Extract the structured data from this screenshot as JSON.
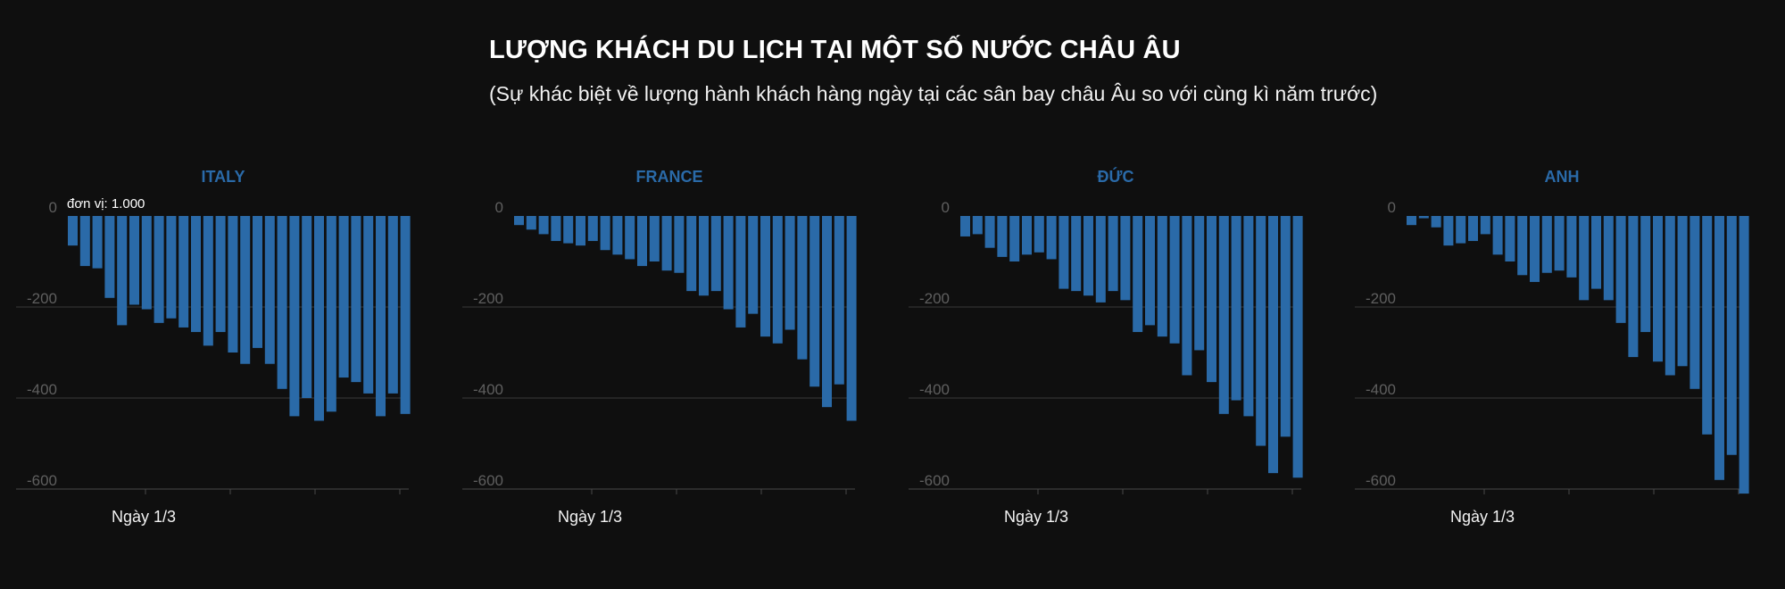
{
  "header": {
    "title": "LƯỢNG KHÁCH DU LỊCH TẠI MỘT SỐ NƯỚC CHÂU ÂU",
    "subtitle": "(Sự khác biệt về lượng hành khách hàng ngày tại các sân bay châu Âu so với cùng kì năm trước)"
  },
  "colors": {
    "background": "#0f0f0f",
    "bar": "#2a6aa8",
    "panel_title": "#2a6aa8",
    "grid": "#3a3a3a",
    "tick_label": "#5f5f5f"
  },
  "chart_data": [
    {
      "type": "bar",
      "title": "ITALY",
      "unit_note": "đơn vị: 1.000",
      "x_tick_label": "Ngày 1/3",
      "ylim": [
        -600,
        0
      ],
      "yticks": [
        0,
        -200,
        -400,
        -600
      ],
      "grid": true,
      "values": [
        -65,
        -110,
        -115,
        -180,
        -240,
        -195,
        -205,
        -235,
        -225,
        -245,
        -255,
        -285,
        -255,
        -300,
        -325,
        -290,
        -325,
        -380,
        -440,
        -400,
        -450,
        -430,
        -355,
        -365,
        -390,
        -440,
        -390,
        -435
      ]
    },
    {
      "type": "bar",
      "title": "FRANCE",
      "x_tick_label": "Ngày 1/3",
      "ylim": [
        -600,
        0
      ],
      "yticks": [
        0,
        -200,
        -400,
        -600
      ],
      "grid": true,
      "values": [
        -20,
        -30,
        -40,
        -55,
        -60,
        -65,
        -55,
        -75,
        -85,
        -95,
        -110,
        -100,
        -120,
        -125,
        -165,
        -175,
        -165,
        -205,
        -245,
        -215,
        -265,
        -280,
        -250,
        -315,
        -375,
        -420,
        -370,
        -450
      ]
    },
    {
      "type": "bar",
      "title": "ĐỨC",
      "x_tick_label": "Ngày 1/3",
      "ylim": [
        -600,
        0
      ],
      "yticks": [
        0,
        -200,
        -400,
        -600
      ],
      "grid": true,
      "values": [
        -45,
        -40,
        -70,
        -90,
        -100,
        -85,
        -80,
        -95,
        -160,
        -165,
        -175,
        -190,
        -165,
        -185,
        -255,
        -240,
        -265,
        -280,
        -350,
        -295,
        -365,
        -435,
        -405,
        -440,
        -505,
        -565,
        -485,
        -575
      ]
    },
    {
      "type": "bar",
      "title": "ANH",
      "x_tick_label": "Ngày 1/3",
      "ylim": [
        -600,
        0
      ],
      "yticks": [
        0,
        -200,
        -400,
        -600
      ],
      "grid": true,
      "values": [
        -20,
        -5,
        -25,
        -65,
        -60,
        -55,
        -40,
        -85,
        -100,
        -130,
        -145,
        -125,
        -120,
        -135,
        -185,
        -160,
        -185,
        -235,
        -310,
        -255,
        -320,
        -350,
        -330,
        -380,
        -480,
        -580,
        -525,
        -610
      ]
    }
  ]
}
